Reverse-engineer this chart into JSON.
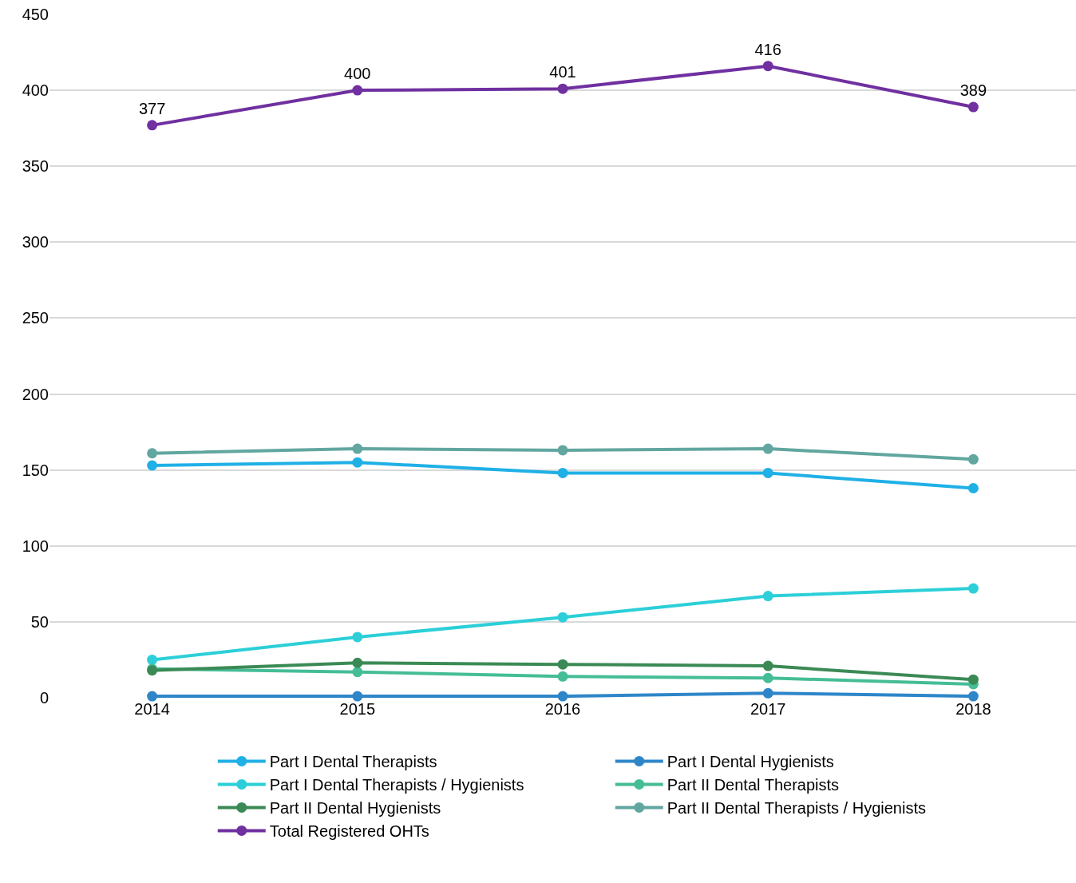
{
  "chart_data": {
    "type": "line",
    "categories": [
      "2014",
      "2015",
      "2016",
      "2017",
      "2018"
    ],
    "series": [
      {
        "name": "Part I Dental Therapists",
        "color": "#1fb0e6",
        "values": [
          153,
          155,
          148,
          148,
          138
        ]
      },
      {
        "name": "Part I Dental Hygienists",
        "color": "#2e86c9",
        "values": [
          1,
          1,
          1,
          3,
          1
        ]
      },
      {
        "name": "Part I Dental Therapists / Hygienists",
        "color": "#2ccfd8",
        "values": [
          25,
          40,
          53,
          67,
          72
        ]
      },
      {
        "name": "Part II Dental Therapists",
        "color": "#45bd97",
        "values": [
          19,
          17,
          14,
          13,
          9
        ]
      },
      {
        "name": "Part II Dental Hygienists",
        "color": "#3b8a55",
        "values": [
          18,
          23,
          22,
          21,
          12
        ]
      },
      {
        "name": "Part II Dental Therapists / Hygienists",
        "color": "#62a6a0",
        "values": [
          161,
          164,
          163,
          164,
          157
        ]
      },
      {
        "name": "Total Registered OHTs",
        "color": "#7030a0",
        "values": [
          377,
          400,
          401,
          416,
          389
        ],
        "value_labels": [
          "377",
          "400",
          "401",
          "416",
          "389"
        ]
      }
    ],
    "ylim": [
      0,
      450
    ],
    "yticks": [
      0,
      50,
      100,
      150,
      200,
      250,
      300,
      350,
      400,
      450
    ],
    "grid": "y",
    "legend": "bottom",
    "marker": "circle",
    "line_style": "solid"
  }
}
